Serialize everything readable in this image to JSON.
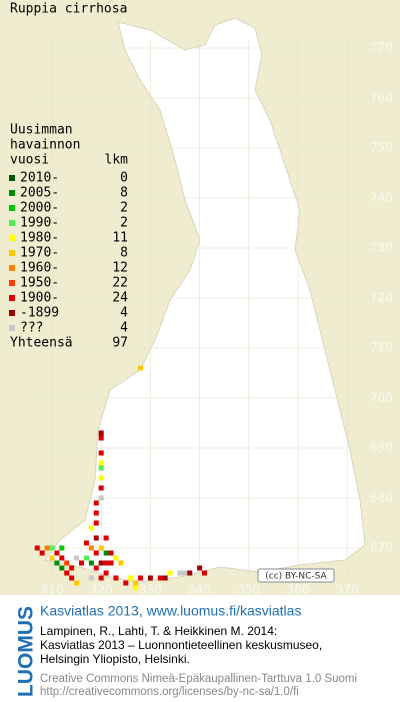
{
  "header": {
    "title": "Ruppia cirrhosa"
  },
  "legend": {
    "heading": [
      "Uusimman",
      "havainnon",
      "vuosi"
    ],
    "count_heading": "lkm",
    "rows": [
      {
        "label": "2010-",
        "count": 0,
        "color": "#005a00"
      },
      {
        "label": "2005-",
        "count": 8,
        "color": "#008c00"
      },
      {
        "label": "2000-",
        "count": 2,
        "color": "#00c800"
      },
      {
        "label": "1990-",
        "count": 2,
        "color": "#50f050"
      },
      {
        "label": "1980-",
        "count": 11,
        "color": "#ffff00"
      },
      {
        "label": "1970-",
        "count": 8,
        "color": "#ffc800"
      },
      {
        "label": "1960-",
        "count": 12,
        "color": "#ff8000"
      },
      {
        "label": "1950-",
        "count": 22,
        "color": "#ff4000"
      },
      {
        "label": "1900-",
        "count": 24,
        "color": "#dc0000"
      },
      {
        "label": "-1899",
        "count": 4,
        "color": "#a00000"
      },
      {
        "label": "???",
        "count": 4,
        "color": "#c8c8c8"
      }
    ],
    "total_label": "Yhteensä",
    "total": 97
  },
  "map": {
    "yticks": [
      770,
      760,
      750,
      740,
      730,
      720,
      710,
      700,
      690,
      680,
      670
    ],
    "xticks": [
      310,
      320,
      330,
      340,
      350,
      360,
      370
    ],
    "license_badge": "(cc) BY-NC-SA",
    "squares": [
      [
        328,
        706,
        5
      ],
      [
        320,
        693,
        9
      ],
      [
        320,
        692,
        8
      ],
      [
        320,
        689,
        8
      ],
      [
        320,
        687,
        4
      ],
      [
        320,
        686,
        3
      ],
      [
        320,
        684,
        4
      ],
      [
        320,
        682,
        8
      ],
      [
        320,
        680,
        10
      ],
      [
        319,
        679,
        8
      ],
      [
        319,
        677,
        8
      ],
      [
        319,
        675,
        8
      ],
      [
        318,
        674,
        4
      ],
      [
        319,
        672,
        9
      ],
      [
        317,
        671,
        8
      ],
      [
        321,
        672,
        8
      ],
      [
        318,
        670,
        6
      ],
      [
        319,
        669,
        8
      ],
      [
        320,
        670,
        5
      ],
      [
        321,
        669,
        1
      ],
      [
        322,
        669,
        8
      ],
      [
        307,
        670,
        8
      ],
      [
        308,
        669,
        8
      ],
      [
        309,
        670,
        6
      ],
      [
        310,
        670,
        3
      ],
      [
        311,
        669,
        8
      ],
      [
        312,
        670,
        2
      ],
      [
        310,
        668,
        5
      ],
      [
        311,
        667,
        1
      ],
      [
        312,
        668,
        8
      ],
      [
        313,
        667,
        7
      ],
      [
        312,
        666,
        1
      ],
      [
        313,
        665,
        8
      ],
      [
        314,
        666,
        8
      ],
      [
        315,
        668,
        10
      ],
      [
        316,
        667,
        8
      ],
      [
        317,
        668,
        3
      ],
      [
        318,
        667,
        1
      ],
      [
        319,
        666,
        8
      ],
      [
        320,
        667,
        9
      ],
      [
        321,
        667,
        8
      ],
      [
        322,
        667,
        8
      ],
      [
        323,
        668,
        4
      ],
      [
        324,
        667,
        5
      ],
      [
        314,
        664,
        8
      ],
      [
        315,
        663,
        5
      ],
      [
        318,
        664,
        10
      ],
      [
        320,
        664,
        8
      ],
      [
        321,
        665,
        8
      ],
      [
        323,
        664,
        8
      ],
      [
        325,
        663,
        8
      ],
      [
        326,
        664,
        4
      ],
      [
        327,
        663,
        5
      ],
      [
        327,
        662,
        4
      ],
      [
        328,
        664,
        8
      ],
      [
        330,
        664,
        9
      ],
      [
        332,
        664,
        8
      ],
      [
        333,
        664,
        9
      ],
      [
        334,
        665,
        4
      ],
      [
        336,
        665,
        10
      ],
      [
        337,
        665,
        10
      ],
      [
        338,
        665,
        9
      ],
      [
        340,
        666,
        9
      ],
      [
        341,
        665,
        8
      ]
    ]
  },
  "footer": {
    "logo": "LUOMUS",
    "link": "Kasviatlas 2013, www.luomus.fi/kasviatlas",
    "citation": [
      "Lampinen, R., Lahti, T. & Heikkinen M. 2014:",
      "Kasviatlas 2013 – Luonnontieteellinen keskusmuseo,",
      "Helsingin Yliopisto, Helsinki."
    ],
    "license": [
      "Creative Commons Nimeä-Epäkaupallinen-Tarttuva 1.0 Suomi",
      "http://creativecommons.org/licenses/by-nc-sa/1.0/fi"
    ]
  }
}
